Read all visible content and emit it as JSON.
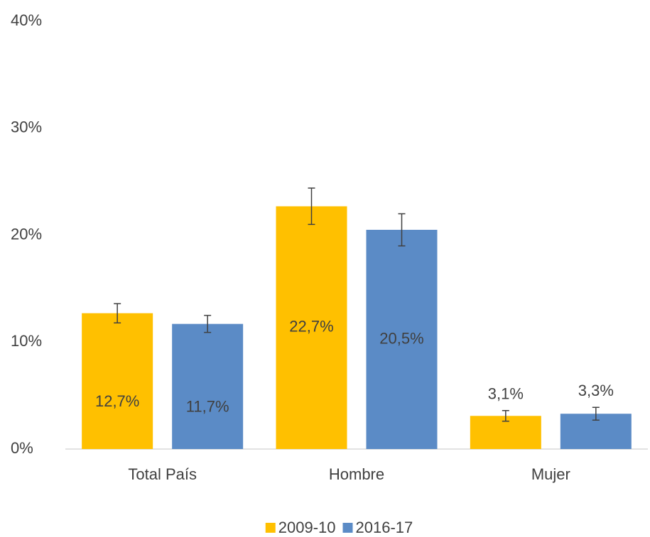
{
  "chart_data": {
    "type": "bar",
    "categories": [
      "Total País",
      "Hombre",
      "Mujer"
    ],
    "series": [
      {
        "name": "2009-10",
        "color": "#ffc000",
        "values": [
          12.7,
          22.7,
          3.1
        ],
        "value_labels": [
          "12,7%",
          "22,7%",
          "3,1%"
        ],
        "errors": [
          0.9,
          1.7,
          0.5
        ]
      },
      {
        "name": "2016-17",
        "color": "#5b8bc6",
        "values": [
          11.7,
          20.5,
          3.3
        ],
        "value_labels": [
          "11,7%",
          "20,5%",
          "3,3%"
        ],
        "errors": [
          0.8,
          1.5,
          0.6
        ]
      }
    ],
    "ylim": [
      0,
      40
    ],
    "yticks": [
      {
        "value": 0,
        "label": "0%"
      },
      {
        "value": 10,
        "label": "10%"
      },
      {
        "value": 20,
        "label": "20%"
      },
      {
        "value": 30,
        "label": "30%"
      },
      {
        "value": 40,
        "label": "40%"
      }
    ],
    "grid": false,
    "legend": "bottom"
  }
}
